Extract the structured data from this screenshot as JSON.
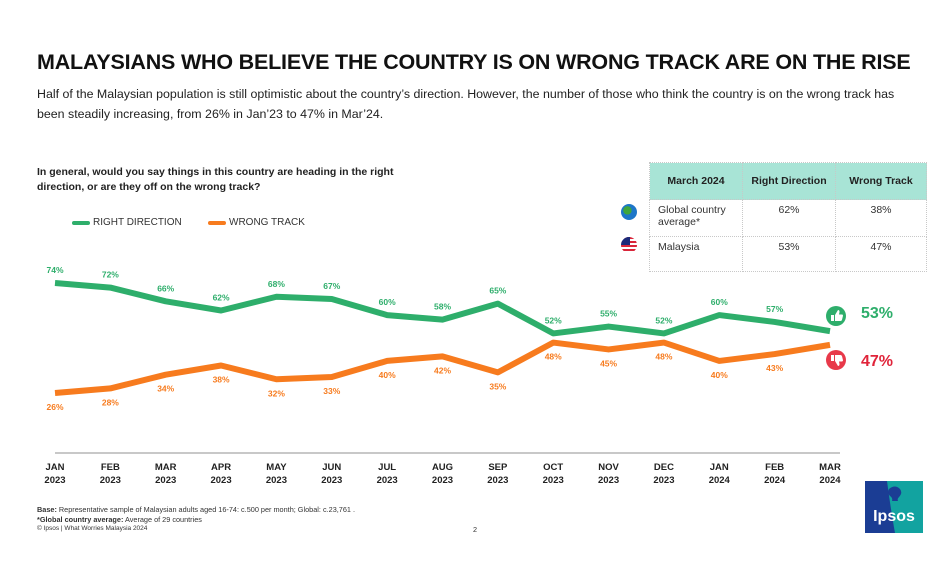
{
  "header": {
    "title": "MALAYSIANS WHO BELIEVE THE COUNTRY IS ON WRONG TRACK ARE ON THE RISE",
    "subtitle": "Half of the Malaysian population is still optimistic about the country’s direction. However, the number of those who think the country is on the wrong track has been steadily increasing, from 26% in Jan’23 to 47% in Mar’24."
  },
  "question": "In general, would you say things in this country are heading in the right direction, or are they off on the wrong track?",
  "colors": {
    "right_direction": "#2eae6b",
    "wrong_track": "#f77b1e",
    "latest_wrong": "#e0243a",
    "table_header": "#a8e4d6"
  },
  "comparison_table": {
    "headers": [
      "March 2024",
      "Right Direction",
      "Wrong Track"
    ],
    "rows": [
      {
        "icon": "globe-icon",
        "label": "Global country average*",
        "right": "62%",
        "wrong": "38%"
      },
      {
        "icon": "malaysia-flag-icon",
        "label": "Malaysia",
        "right": "53%",
        "wrong": "47%"
      }
    ]
  },
  "latest": {
    "right_label": "53%",
    "wrong_label": "47%",
    "right_icon": "thumbs-up-icon",
    "wrong_icon": "thumbs-down-icon"
  },
  "chart_data": {
    "type": "line",
    "title": "In general, would you say things in this country are heading in the right direction, or are they off on the wrong track?",
    "xlabel": "",
    "ylabel": "",
    "x": [
      "JAN 2023",
      "FEB 2023",
      "MAR 2023",
      "APR 2023",
      "MAY 2023",
      "JUN 2023",
      "JUL 2023",
      "AUG 2023",
      "SEP 2023",
      "OCT 2023",
      "NOV 2023",
      "DEC 2023",
      "JAN 2024",
      "FEB 2024",
      "MAR 2024"
    ],
    "x_lines": [
      [
        "JAN",
        "2023"
      ],
      [
        "FEB",
        "2023"
      ],
      [
        "MAR",
        "2023"
      ],
      [
        "APR",
        "2023"
      ],
      [
        "MAY",
        "2023"
      ],
      [
        "JUN",
        "2023"
      ],
      [
        "JUL",
        "2023"
      ],
      [
        "AUG",
        "2023"
      ],
      [
        "SEP",
        "2023"
      ],
      [
        "OCT",
        "2023"
      ],
      [
        "NOV",
        "2023"
      ],
      [
        "DEC",
        "2023"
      ],
      [
        "JAN",
        "2024"
      ],
      [
        "FEB",
        "2024"
      ],
      [
        "MAR",
        "2024"
      ]
    ],
    "series": [
      {
        "name": "RIGHT DIRECTION",
        "values": [
          74,
          72,
          66,
          62,
          68,
          67,
          60,
          58,
          65,
          52,
          55,
          52,
          60,
          57,
          53
        ]
      },
      {
        "name": "WRONG TRACK",
        "values": [
          26,
          28,
          34,
          38,
          32,
          33,
          40,
          42,
          35,
          48,
          45,
          48,
          40,
          43,
          47
        ]
      }
    ],
    "value_suffix": "%",
    "ylim": [
      20,
      80
    ],
    "grid": false,
    "legend": "top-left"
  },
  "footer": {
    "base_label": "Base:",
    "base_text": " Representative sample of Malaysian adults aged 16-74: c.500 per month; Global: c.23,761 .",
    "note_label": "*Global country average:",
    "note_text": " Average of 29 countries",
    "copyright": "© Ipsos | What Worries Malaysia 2024",
    "page_number": "2"
  },
  "logo": {
    "text": "Ipsos"
  }
}
